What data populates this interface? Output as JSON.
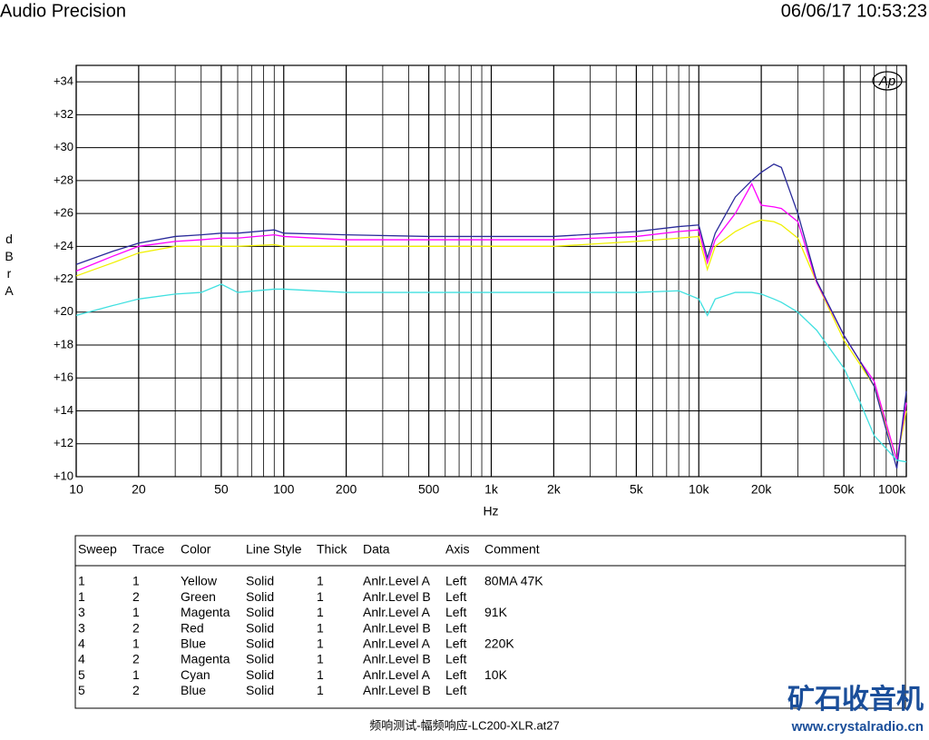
{
  "header": {
    "title": "Audio Precision",
    "timestamp": "06/06/17 10:53:23",
    "logo": "Ap"
  },
  "chart_data": {
    "type": "line",
    "xscale": "log",
    "grid": true,
    "ylabel": "dBr A",
    "xlabel": "Hz",
    "xlim": [
      10,
      100000
    ],
    "ylim": [
      10,
      35
    ],
    "xticks": [
      10,
      20,
      50,
      100,
      200,
      500,
      {
        "value": 1000,
        "label": "1k"
      },
      {
        "value": 2000,
        "label": "2k"
      },
      {
        "value": 5000,
        "label": "5k"
      },
      {
        "value": 10000,
        "label": "10k"
      },
      {
        "value": 20000,
        "label": "20k"
      },
      {
        "value": 50000,
        "label": "50k"
      },
      {
        "value": 100000,
        "label": "100k"
      }
    ],
    "xminor": [
      30,
      40,
      60,
      70,
      80,
      90,
      300,
      400,
      600,
      700,
      800,
      900,
      3000,
      4000,
      6000,
      7000,
      8000,
      9000,
      30000,
      40000,
      60000,
      70000,
      80000,
      90000
    ],
    "yticks": [
      {
        "value": 10,
        "label": "+10"
      },
      {
        "value": 12,
        "label": "+12"
      },
      {
        "value": 14,
        "label": "+14"
      },
      {
        "value": 16,
        "label": "+16"
      },
      {
        "value": 18,
        "label": "+18"
      },
      {
        "value": 20,
        "label": "+20"
      },
      {
        "value": 22,
        "label": "+22"
      },
      {
        "value": 24,
        "label": "+24"
      },
      {
        "value": 26,
        "label": "+26"
      },
      {
        "value": 28,
        "label": "+28"
      },
      {
        "value": 30,
        "label": "+30"
      },
      {
        "value": 32,
        "label": "+32"
      },
      {
        "value": 34,
        "label": "+34"
      }
    ],
    "x": [
      10,
      15,
      20,
      30,
      40,
      50,
      60,
      90,
      100,
      200,
      500,
      1000,
      2000,
      5000,
      8000,
      10000,
      11000,
      12000,
      15000,
      18000,
      20000,
      23000,
      25000,
      30000,
      37000,
      50000,
      60000,
      70000,
      90000,
      100000
    ],
    "series": [
      {
        "color": "#f0f000",
        "values": [
          22.2,
          23.0,
          23.6,
          24.0,
          24.0,
          24.0,
          24.0,
          24.1,
          24.0,
          24.0,
          24.0,
          24.0,
          24.0,
          24.3,
          24.5,
          24.6,
          22.6,
          24.0,
          24.9,
          25.4,
          25.6,
          25.5,
          25.3,
          24.5,
          21.8,
          18.3,
          16.8,
          15.5,
          11.0,
          14.0
        ]
      },
      {
        "color": "#ff00ff",
        "values": [
          22.5,
          23.4,
          24.0,
          24.3,
          24.4,
          24.5,
          24.5,
          24.7,
          24.6,
          24.4,
          24.4,
          24.4,
          24.4,
          24.6,
          24.9,
          25.0,
          23.0,
          24.4,
          26.0,
          27.8,
          26.5,
          26.4,
          26.3,
          25.5,
          21.8,
          18.6,
          17.0,
          15.8,
          11.0,
          14.5
        ]
      },
      {
        "color": "#2a2a9a",
        "values": [
          22.9,
          23.7,
          24.2,
          24.6,
          24.7,
          24.8,
          24.8,
          25.0,
          24.8,
          24.7,
          24.6,
          24.6,
          24.6,
          24.9,
          25.2,
          25.3,
          23.3,
          24.8,
          27.0,
          28.0,
          28.5,
          29.0,
          28.8,
          26.0,
          21.9,
          18.6,
          17.0,
          15.5,
          10.5,
          15.2
        ]
      },
      {
        "color": "#40e0e0",
        "values": [
          19.8,
          20.4,
          20.8,
          21.1,
          21.2,
          21.7,
          21.2,
          21.4,
          21.4,
          21.2,
          21.2,
          21.2,
          21.2,
          21.2,
          21.3,
          20.8,
          19.8,
          20.8,
          21.2,
          21.2,
          21.1,
          20.8,
          20.6,
          20.0,
          18.9,
          16.6,
          14.5,
          12.5,
          11.0,
          10.9
        ]
      }
    ]
  },
  "table": {
    "columns": [
      "Sweep",
      "Trace",
      "Color",
      "Line Style",
      "Thick",
      "Data",
      "Axis",
      "Comment"
    ],
    "rows": [
      [
        "1",
        "1",
        "Yellow",
        "Solid",
        "1",
        "Anlr.Level A",
        "Left",
        "80MA 47K"
      ],
      [
        "1",
        "2",
        "Green",
        "Solid",
        "1",
        "Anlr.Level B",
        "Left"
      ],
      [
        "3",
        "1",
        "Magenta",
        "Solid",
        "1",
        "Anlr.Level A",
        "Left",
        "91K"
      ],
      [
        "3",
        "2",
        "Red",
        "Solid",
        "1",
        "Anlr.Level B",
        "Left"
      ],
      [
        "4",
        "1",
        "Blue",
        "Solid",
        "1",
        "Anlr.Level A",
        "Left",
        "220K"
      ],
      [
        "4",
        "2",
        "Magenta",
        "Solid",
        "1",
        "Anlr.Level B",
        "Left"
      ],
      [
        "5",
        "1",
        "Cyan",
        "Solid",
        "1",
        "Anlr.Level A",
        "Left",
        "10K"
      ],
      [
        "5",
        "2",
        "Blue",
        "Solid",
        "1",
        "Anlr.Level B",
        "Left"
      ]
    ]
  },
  "footer": {
    "filename": "频响测试-幅频响应-LC200-XLR.at27",
    "watermark": "矿石收音机",
    "site": "www.crystalradio.cn"
  }
}
